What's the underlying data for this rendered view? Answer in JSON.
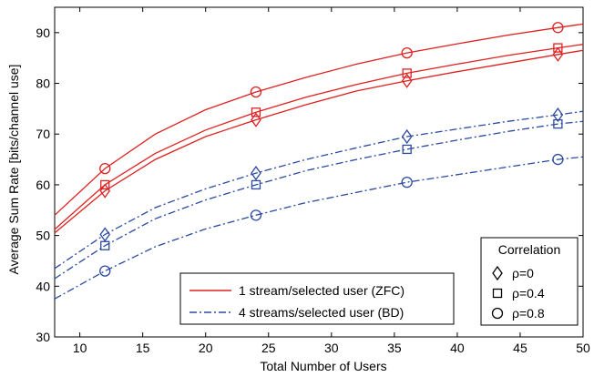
{
  "chart_data": {
    "type": "line",
    "title": "",
    "xlabel": "Total Number of Users",
    "ylabel": "Average Sum Rate [bits/channel use]",
    "xlim": [
      8,
      50
    ],
    "ylim": [
      30,
      95
    ],
    "xticks": [
      10,
      15,
      20,
      25,
      30,
      35,
      40,
      45,
      50
    ],
    "yticks": [
      30,
      40,
      50,
      60,
      70,
      80,
      90
    ],
    "grid": false,
    "x": [
      8,
      12,
      16,
      20,
      24,
      28,
      32,
      36,
      40,
      44,
      48,
      50
    ],
    "marker_x": [
      12,
      24,
      36,
      48
    ],
    "series": [
      {
        "scheme": "zfc",
        "rho": "0",
        "color": "#e02020",
        "dash": "solid",
        "marker": "diamond",
        "values": [
          50.5,
          58.8,
          65.0,
          69.5,
          72.8,
          75.8,
          78.5,
          80.5,
          82.3,
          84.0,
          85.7,
          86.5
        ]
      },
      {
        "scheme": "zfc",
        "rho": "0.4",
        "color": "#e02020",
        "dash": "solid",
        "marker": "square",
        "values": [
          51.2,
          60.0,
          66.2,
          70.8,
          74.3,
          77.3,
          79.8,
          82.0,
          83.8,
          85.5,
          87.0,
          87.7
        ]
      },
      {
        "scheme": "zfc",
        "rho": "0.8",
        "color": "#e02020",
        "dash": "solid",
        "marker": "circle",
        "values": [
          54.0,
          63.2,
          70.0,
          74.8,
          78.3,
          81.2,
          83.8,
          86.0,
          87.8,
          89.5,
          91.0,
          91.7
        ]
      },
      {
        "scheme": "bd",
        "rho": "0",
        "color": "#2b4aa0",
        "dash": "dashdot",
        "marker": "diamond",
        "values": [
          43.5,
          50.2,
          55.5,
          59.2,
          62.3,
          65.0,
          67.3,
          69.5,
          71.0,
          72.5,
          73.8,
          74.5
        ]
      },
      {
        "scheme": "bd",
        "rho": "0.4",
        "color": "#2b4aa0",
        "dash": "dashdot",
        "marker": "square",
        "values": [
          41.5,
          48.0,
          53.3,
          57.0,
          60.0,
          62.8,
          65.0,
          67.0,
          68.8,
          70.5,
          72.0,
          72.5
        ]
      },
      {
        "scheme": "bd",
        "rho": "0.8",
        "color": "#2b4aa0",
        "dash": "dashdot",
        "marker": "circle",
        "values": [
          37.5,
          43.0,
          47.8,
          51.3,
          54.0,
          56.5,
          58.5,
          60.5,
          62.0,
          63.5,
          65.0,
          65.5
        ]
      }
    ],
    "legend_schemes": {
      "placement": "bottom-center",
      "items": [
        {
          "label": "1 stream/selected user (ZFC)",
          "color": "#e02020",
          "dash": "solid"
        },
        {
          "label": "4 streams/selected user (BD)",
          "color": "#2b4aa0",
          "dash": "dashdot"
        }
      ]
    },
    "legend_correlation": {
      "placement": "bottom-right",
      "title": "Correlation",
      "items": [
        {
          "label": "ρ=0",
          "marker": "diamond"
        },
        {
          "label": "ρ=0.4",
          "marker": "square"
        },
        {
          "label": "ρ=0.8",
          "marker": "circle"
        }
      ]
    }
  }
}
